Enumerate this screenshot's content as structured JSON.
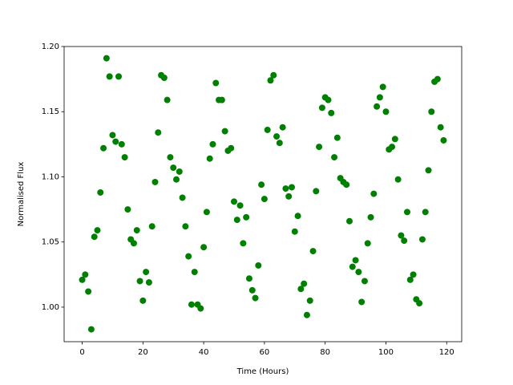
{
  "chart_data": {
    "type": "scatter",
    "xlabel": "Time (Hours)",
    "ylabel": "Normalised Flux",
    "x": [
      0,
      1,
      2,
      3,
      4,
      5,
      6,
      7,
      8,
      9,
      10,
      11,
      12,
      13,
      14,
      15,
      16,
      17,
      18,
      19,
      20,
      21,
      22,
      23,
      24,
      25,
      26,
      27,
      28,
      29,
      30,
      31,
      32,
      33,
      34,
      35,
      36,
      37,
      38,
      39,
      40,
      41,
      42,
      43,
      44,
      45,
      46,
      47,
      48,
      49,
      50,
      51,
      52,
      53,
      54,
      55,
      56,
      57,
      58,
      59,
      60,
      61,
      62,
      63,
      64,
      65,
      66,
      67,
      68,
      69,
      70,
      71,
      72,
      73,
      74,
      75,
      76,
      77,
      78,
      79,
      80,
      81,
      82,
      83,
      84,
      85,
      86,
      87,
      88,
      89,
      90,
      91,
      92,
      93,
      94,
      95,
      96,
      97,
      98,
      99,
      100,
      101,
      102,
      103,
      104,
      105,
      106,
      107,
      108,
      109,
      110,
      111,
      112,
      113,
      114,
      115,
      116,
      117,
      118,
      119
    ],
    "series": [
      {
        "color": "#008000",
        "values": [
          1.021,
          1.025,
          1.012,
          0.983,
          1.054,
          1.059,
          1.088,
          1.122,
          1.191,
          1.177,
          1.132,
          1.127,
          1.177,
          1.125,
          1.115,
          1.075,
          1.052,
          1.049,
          1.059,
          1.02,
          1.005,
          1.027,
          1.019,
          1.062,
          1.096,
          1.134,
          1.178,
          1.176,
          1.159,
          1.115,
          1.107,
          1.098,
          1.104,
          1.084,
          1.062,
          1.039,
          1.002,
          1.027,
          1.002,
          0.999,
          1.046,
          1.073,
          1.114,
          1.125,
          1.172,
          1.159,
          1.159,
          1.135,
          1.12,
          1.122,
          1.081,
          1.067,
          1.078,
          1.049,
          1.069,
          1.022,
          1.013,
          1.007,
          1.032,
          1.094,
          1.083,
          1.136,
          1.174,
          1.178,
          1.131,
          1.126,
          1.138,
          1.091,
          1.085,
          1.092,
          1.058,
          1.07,
          1.014,
          1.018,
          0.994,
          1.005,
          1.043,
          1.089,
          1.123,
          1.153,
          1.161,
          1.159,
          1.149,
          1.115,
          1.13,
          1.099,
          1.096,
          1.094,
          1.066,
          1.031,
          1.036,
          1.027,
          1.004,
          1.02,
          1.049,
          1.069,
          1.087,
          1.154,
          1.161,
          1.169,
          1.15,
          1.121,
          1.123,
          1.129,
          1.098,
          1.055,
          1.051,
          1.073,
          1.021,
          1.025,
          1.006,
          1.003,
          1.052,
          1.073,
          1.105,
          1.15,
          1.173,
          1.175,
          1.138,
          1.128
        ]
      }
    ],
    "xlim": [
      -5.95,
      124.95
    ],
    "xticks": [
      0,
      20,
      40,
      60,
      80,
      100,
      120
    ],
    "ylim": [
      0.9735,
      1.2
    ],
    "yticks": [
      {
        "value": 1,
        "label": "1.00"
      },
      {
        "value": 1.05,
        "label": "1.05"
      },
      {
        "value": 1.1,
        "label": "1.10"
      },
      {
        "value": 1.15,
        "label": "1.15"
      },
      {
        "value": 1.2,
        "label": "1.20"
      }
    ]
  }
}
